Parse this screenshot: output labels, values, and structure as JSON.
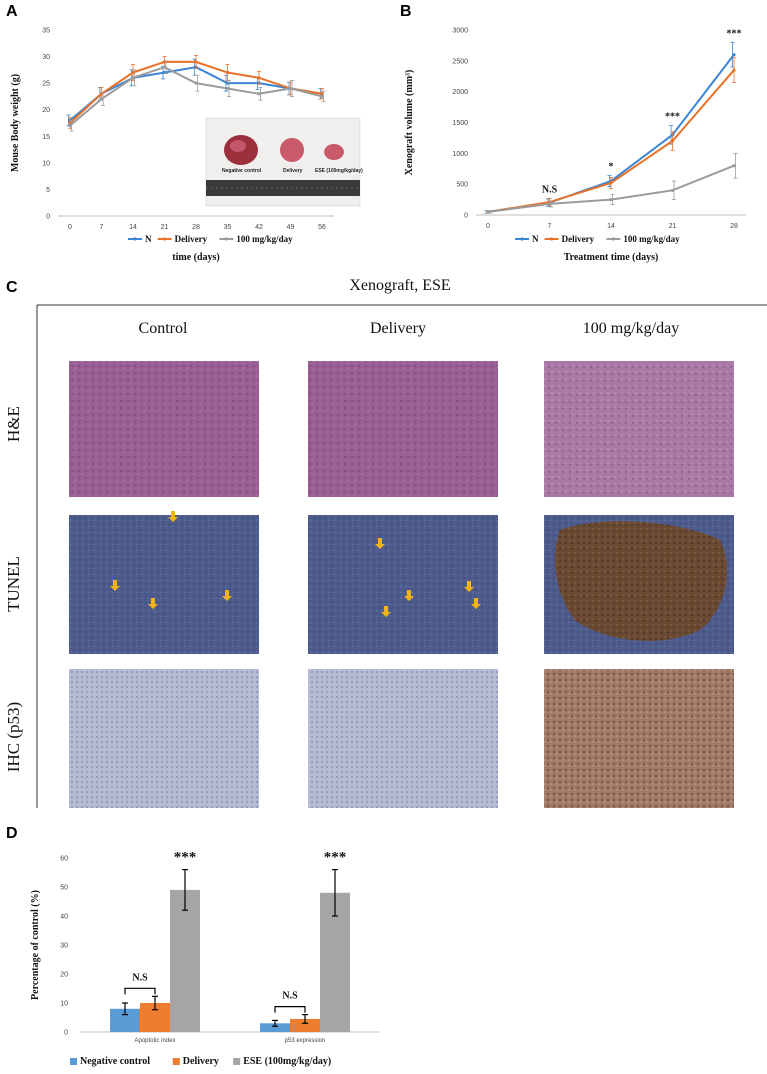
{
  "panels": {
    "a": "A",
    "b": "B",
    "c": "C",
    "d": "D"
  },
  "chart_data": [
    {
      "id": "A",
      "type": "line",
      "title": "",
      "xlabel": "time (days)",
      "ylabel": "Mouse Body weight (g)",
      "x": [
        0,
        7,
        14,
        21,
        28,
        35,
        42,
        49,
        56
      ],
      "ylim": [
        0,
        35
      ],
      "yticks": [
        0,
        5,
        10,
        15,
        20,
        25,
        30,
        35
      ],
      "series": [
        {
          "name": "N",
          "color": "#3b86d4",
          "values": [
            18,
            23,
            26,
            27,
            28,
            25,
            25,
            24,
            23
          ],
          "errors": [
            1,
            1.2,
            1.5,
            1.2,
            1.5,
            1.5,
            1.2,
            1.2,
            1
          ]
        },
        {
          "name": "Delivery",
          "color": "#ea7128",
          "values": [
            17.5,
            23,
            27,
            29,
            29,
            27,
            26,
            24,
            23
          ],
          "errors": [
            1,
            1.2,
            1.5,
            1,
            1.2,
            1.5,
            1.2,
            1.2,
            1
          ]
        },
        {
          "name": "100 mg/kg/day",
          "color": "#9b9b9b",
          "values": [
            17,
            22,
            26,
            28,
            25,
            24,
            23,
            24,
            22.5
          ],
          "errors": [
            1,
            1.2,
            1.5,
            1.2,
            1.5,
            1.5,
            1.2,
            1.5,
            1
          ]
        }
      ],
      "inset_photo": {
        "labels": [
          "Negative control",
          "Delivery",
          "ESE (100mg/kg/day)"
        ]
      }
    },
    {
      "id": "B",
      "type": "line",
      "title": "",
      "xlabel": "Treatment time (days)",
      "ylabel": "Xenograft volume (mm³)",
      "x": [
        0,
        7,
        14,
        21,
        28
      ],
      "ylim": [
        0,
        3000
      ],
      "yticks": [
        0,
        500,
        1000,
        1500,
        2000,
        2500,
        3000
      ],
      "series": [
        {
          "name": "N",
          "color": "#3b86d4",
          "values": [
            50,
            200,
            550,
            1300,
            2600
          ],
          "errors": [
            20,
            60,
            90,
            150,
            200
          ]
        },
        {
          "name": "Delivery",
          "color": "#ea7128",
          "values": [
            50,
            210,
            520,
            1200,
            2350
          ],
          "errors": [
            20,
            60,
            90,
            150,
            200
          ]
        },
        {
          "name": "100 mg/kg/day",
          "color": "#9b9b9b",
          "values": [
            50,
            180,
            250,
            400,
            800
          ],
          "errors": [
            20,
            50,
            80,
            150,
            200
          ]
        }
      ],
      "annotations": [
        {
          "x": 7,
          "text": "N.S"
        },
        {
          "x": 14,
          "text": "*"
        },
        {
          "x": 21,
          "text": "***"
        },
        {
          "x": 28,
          "text": "***"
        }
      ]
    },
    {
      "id": "D",
      "type": "bar",
      "title": "",
      "xlabel": "",
      "ylabel": "Percentage of control (%)",
      "categories": [
        "Apoptotic index",
        "p53 expression"
      ],
      "ylim": [
        0,
        60
      ],
      "yticks": [
        0,
        10,
        20,
        30,
        40,
        50,
        60
      ],
      "series": [
        {
          "name": "Negative control",
          "color": "#5b9bd5",
          "values": [
            8,
            3
          ],
          "errors": [
            2,
            1
          ]
        },
        {
          "name": "Delivery",
          "color": "#ed7d31",
          "values": [
            10,
            4.5
          ],
          "errors": [
            2.3,
            1.5
          ]
        },
        {
          "name": "ESE (100mg/kg/day)",
          "color": "#a5a5a5",
          "values": [
            49,
            48
          ],
          "errors": [
            7,
            8
          ]
        }
      ],
      "annotations": [
        {
          "category": 0,
          "text": "N.S"
        },
        {
          "category": 0,
          "text": "***"
        },
        {
          "category": 1,
          "text": "N.S"
        },
        {
          "category": 1,
          "text": "***"
        }
      ]
    }
  ],
  "panel_c": {
    "title": "Xenograft, ESE",
    "columns": [
      "Control",
      "Delivery",
      "100 mg/kg/day"
    ],
    "rows": [
      "H&E",
      "TUNEL",
      "IHC (p53)"
    ]
  },
  "colors": {
    "he": "#9a5f94",
    "tunel": "#4d5c8c",
    "tunel_brown": "#6b4a33",
    "ihc": "#b3b7d0",
    "ihc_brown": "#8a5a45",
    "arrow": "#f2b316"
  }
}
